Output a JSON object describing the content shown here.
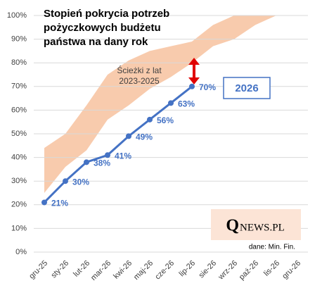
{
  "chart_data": {
    "type": "line",
    "title": [
      "Stopień pokrycia potrzeb",
      "pożyczkowych budżetu",
      "państwa na dany rok"
    ],
    "categories": [
      "gru-25",
      "sty-26",
      "lut-26",
      "mar-26",
      "kwi-26",
      "maj-26",
      "cze-26",
      "lip-26",
      "sie-26",
      "wrz-26",
      "paź-26",
      "lis-26",
      "gru-26"
    ],
    "series": [
      {
        "color": "#4472c4",
        "values": [
          21,
          30,
          38,
          41,
          49,
          56,
          63,
          70,
          null,
          null,
          null,
          null,
          null
        ],
        "value_labels": [
          "21%",
          "30%",
          "38%",
          "41%",
          "49%",
          "56%",
          "63%",
          "70%",
          null,
          null,
          null,
          null,
          null
        ]
      }
    ],
    "band": {
      "color": "#f8cbad",
      "low": [
        25,
        36,
        43,
        56,
        62,
        69,
        74,
        80,
        87,
        90,
        96,
        100,
        null
      ],
      "high": [
        44,
        50,
        62,
        75,
        81,
        85,
        87,
        89,
        96,
        100,
        100,
        100,
        null
      ]
    },
    "ylim": [
      0,
      100
    ],
    "yticks": [
      {
        "value": 0,
        "label": "0%"
      },
      {
        "value": 10,
        "label": "10%"
      },
      {
        "value": 20,
        "label": "20%"
      },
      {
        "value": 30,
        "label": "30%"
      },
      {
        "value": 40,
        "label": "40%"
      },
      {
        "value": 50,
        "label": "50%"
      },
      {
        "value": 60,
        "label": "60%"
      },
      {
        "value": 70,
        "label": "70%"
      },
      {
        "value": 80,
        "label": "80%"
      },
      {
        "value": 90,
        "label": "90%"
      },
      {
        "value": 100,
        "label": "100%"
      }
    ],
    "grid": true,
    "annotations": [
      "Ścieżki z lat",
      "2023-2025",
      "2026",
      "dane: Min. Fin."
    ],
    "logo": {
      "initial": "Q",
      "rest": "NEWS.PL"
    }
  }
}
